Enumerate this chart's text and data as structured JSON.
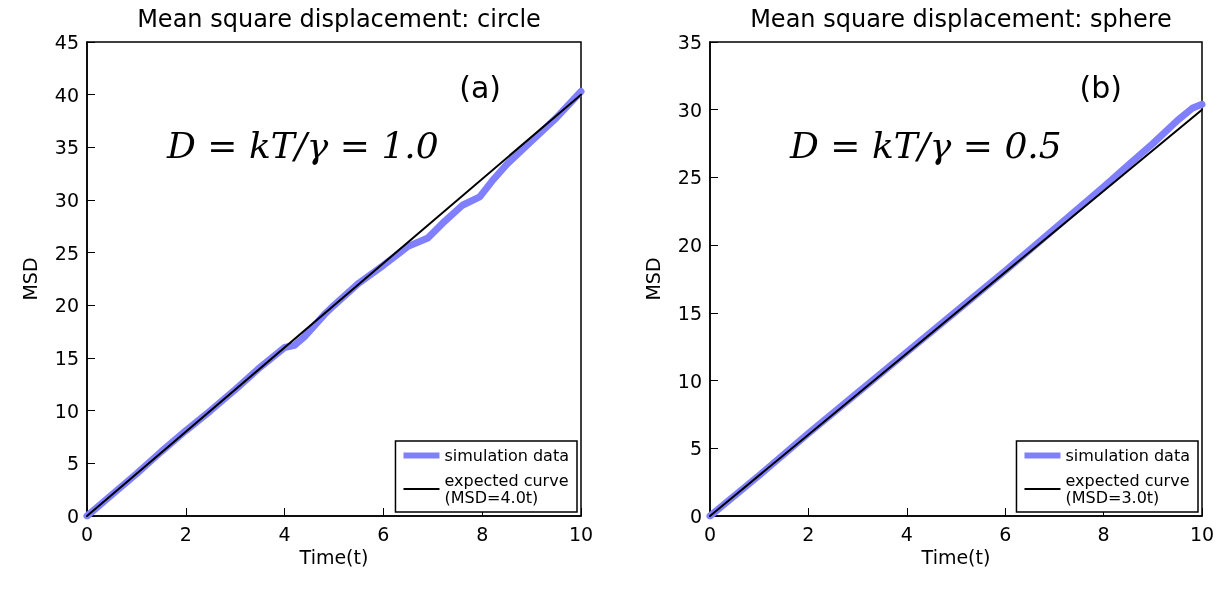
{
  "chart_data": [
    {
      "type": "line",
      "title": "Mean square displacement: circle",
      "xlabel": "Time(t)",
      "ylabel": "MSD",
      "xlim": [
        0,
        10
      ],
      "xticks": [
        0,
        2,
        4,
        6,
        8,
        10
      ],
      "ylim": [
        0,
        45
      ],
      "yticks": [
        0,
        5,
        10,
        15,
        20,
        25,
        30,
        35,
        40,
        45
      ],
      "legend": "bottom right",
      "marker": "none",
      "line_style": "solid",
      "annotations": [
        "(a)",
        "D = kT/γ = 1.0"
      ],
      "series": [
        {
          "name": "simulation data",
          "color": "#8080ff",
          "x": [
            0,
            0.5,
            1,
            1.5,
            2,
            2.5,
            3,
            3.5,
            4,
            4.2,
            4.4,
            4.8,
            5,
            5.5,
            6,
            6.5,
            6.9,
            7.2,
            7.6,
            7.95,
            8.2,
            8.5,
            9,
            9.5,
            10
          ],
          "values": [
            0,
            2.0,
            4.0,
            6.1,
            8.1,
            10.0,
            12.0,
            14.1,
            16.0,
            16.2,
            17.0,
            19.1,
            20.0,
            22.1,
            23.8,
            25.6,
            26.4,
            27.8,
            29.5,
            30.3,
            31.8,
            33.4,
            35.6,
            37.8,
            40.3
          ]
        },
        {
          "name": "expected curve\n(MSD=4.0t)",
          "color": "#000000",
          "x": [
            0,
            10
          ],
          "values": [
            0,
            40
          ]
        }
      ]
    },
    {
      "type": "line",
      "title": "Mean square displacement: sphere",
      "xlabel": "Time(t)",
      "ylabel": "MSD",
      "xlim": [
        0,
        10
      ],
      "xticks": [
        0,
        2,
        4,
        6,
        8,
        10
      ],
      "ylim": [
        0,
        35
      ],
      "yticks": [
        0,
        5,
        10,
        15,
        20,
        25,
        30,
        35
      ],
      "legend": "bottom right",
      "marker": "none",
      "line_style": "solid",
      "annotations": [
        "(b)",
        "D = kT/γ = 0.5"
      ],
      "series": [
        {
          "name": "simulation data",
          "color": "#8080ff",
          "x": [
            0,
            1,
            2,
            3,
            4,
            5,
            6,
            7,
            8,
            8.5,
            9,
            9.5,
            9.8,
            10
          ],
          "values": [
            0,
            3.0,
            6.1,
            9.1,
            12.1,
            15.1,
            18.1,
            21.2,
            24.3,
            25.9,
            27.5,
            29.2,
            30.1,
            30.4
          ]
        },
        {
          "name": "expected curve\n(MSD=3.0t)",
          "color": "#000000",
          "x": [
            0,
            10
          ],
          "values": [
            0,
            30
          ]
        }
      ]
    }
  ]
}
